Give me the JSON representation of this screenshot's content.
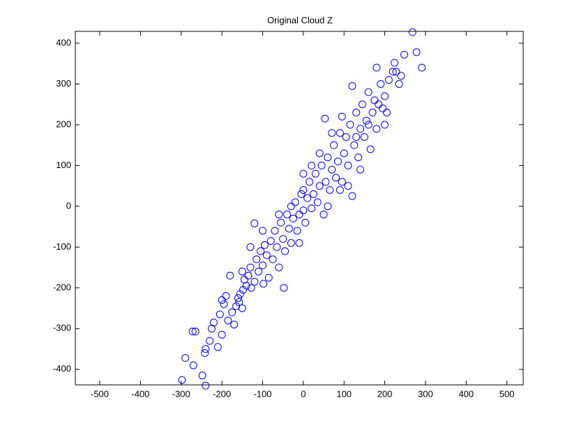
{
  "chart_data": {
    "type": "scatter",
    "title": "Original Cloud Z",
    "color": "#0000ff",
    "xlim": [
      -560,
      540
    ],
    "ylim": [
      -438,
      429
    ],
    "xticks": [
      -500,
      -400,
      -300,
      -200,
      -100,
      0,
      100,
      200,
      300,
      400,
      500
    ],
    "yticks": [
      -400,
      -300,
      -200,
      -100,
      0,
      100,
      200,
      300,
      400
    ],
    "x": [
      -298,
      -240,
      -290,
      -265,
      -272,
      -248,
      -270,
      -240,
      -242,
      -230,
      -225,
      -220,
      -210,
      -200,
      -205,
      -195,
      -190,
      -185,
      -175,
      -170,
      -165,
      -160,
      -158,
      -155,
      -150,
      -148,
      -145,
      -140,
      -135,
      -130,
      -128,
      -120,
      -120,
      -115,
      -110,
      -105,
      -100,
      -98,
      -95,
      -90,
      -85,
      -80,
      -75,
      -70,
      -65,
      -60,
      -55,
      -50,
      -48,
      -45,
      -40,
      -35,
      -30,
      -25,
      -20,
      -15,
      -10,
      -5,
      0,
      0,
      5,
      10,
      15,
      20,
      25,
      30,
      35,
      40,
      45,
      50,
      53,
      55,
      60,
      65,
      70,
      75,
      80,
      85,
      90,
      95,
      100,
      105,
      110,
      115,
      120,
      120,
      125,
      130,
      135,
      140,
      145,
      150,
      155,
      160,
      165,
      170,
      175,
      180,
      180,
      185,
      190,
      195,
      200,
      205,
      210,
      220,
      224,
      228,
      235,
      248,
      268,
      278,
      291,
      240,
      -180,
      -60,
      20,
      70,
      110,
      140,
      -130,
      0,
      -30,
      60,
      90,
      40,
      -10,
      -100,
      160,
      200,
      130,
      -200,
      -150,
      95
    ],
    "values": [
      -426,
      -440,
      -372,
      -307,
      -307,
      -415,
      -390,
      -350,
      -360,
      -330,
      -300,
      -285,
      -345,
      -315,
      -265,
      -240,
      -220,
      -280,
      -260,
      -290,
      -245,
      -225,
      -235,
      -215,
      -250,
      -205,
      -180,
      -195,
      -170,
      -150,
      -200,
      -42,
      -185,
      -130,
      -160,
      -110,
      -145,
      -190,
      -95,
      -120,
      -175,
      -85,
      -130,
      -60,
      -100,
      -150,
      -40,
      -80,
      -200,
      -110,
      -20,
      -55,
      -90,
      -30,
      10,
      -60,
      -20,
      30,
      -10,
      40,
      -40,
      20,
      60,
      -5,
      30,
      80,
      10,
      50,
      100,
      -20,
      215,
      60,
      120,
      40,
      90,
      150,
      70,
      110,
      180,
      60,
      130,
      170,
      100,
      200,
      25,
      295,
      150,
      230,
      120,
      190,
      250,
      170,
      210,
      280,
      140,
      230,
      260,
      340,
      190,
      250,
      300,
      240,
      270,
      230,
      310,
      330,
      352,
      330,
      300,
      372,
      427,
      378,
      340,
      320,
      -170,
      -20,
      100,
      180,
      50,
      90,
      -100,
      80,
      0,
      0,
      40,
      130,
      -90,
      -60,
      200,
      200,
      170,
      -230,
      -160,
      220
    ]
  }
}
